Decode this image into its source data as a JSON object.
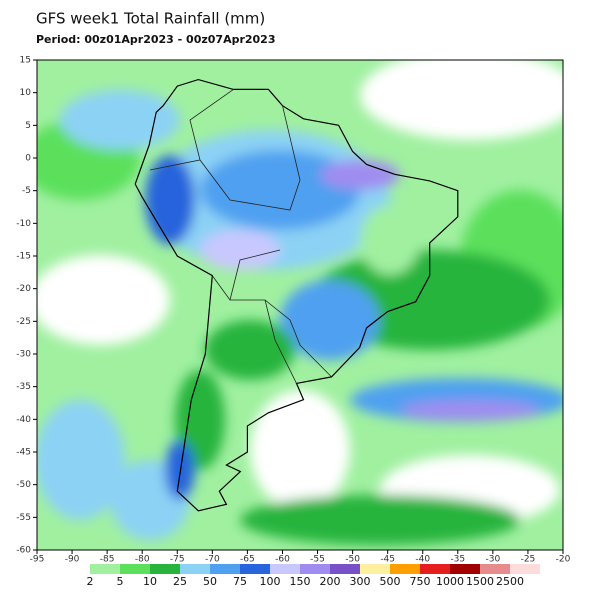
{
  "header": {
    "title": "GFS week1 Total Rainfall (mm)",
    "subtitle": "Period: 00z01Apr2023 - 00z07Apr2023"
  },
  "map": {
    "lon_range": [
      -95,
      -20
    ],
    "lat_range": [
      -60,
      15
    ],
    "lon_ticks": [
      -95,
      -90,
      -85,
      -80,
      -75,
      -70,
      -65,
      -60,
      -55,
      -50,
      -45,
      -40,
      -35,
      -30,
      -25,
      -20
    ],
    "lat_ticks": [
      15,
      10,
      5,
      0,
      -5,
      -10,
      -15,
      -20,
      -25,
      -30,
      -35,
      -40,
      -45,
      -50,
      -55,
      -60
    ]
  },
  "colorbar": {
    "levels": [
      2,
      5,
      10,
      25,
      50,
      75,
      100,
      150,
      200,
      300,
      500,
      750,
      1000,
      1500,
      2500
    ],
    "colors": [
      "#a0f0a0",
      "#5ce05c",
      "#28b43c",
      "#8cd2f5",
      "#50a0f0",
      "#2864dc",
      "#c8c8ff",
      "#a08cf0",
      "#7850c8",
      "#fff0a0",
      "#ffa000",
      "#e61e1e",
      "#a00000",
      "#e68c8c",
      "#ffdcdc"
    ]
  }
}
